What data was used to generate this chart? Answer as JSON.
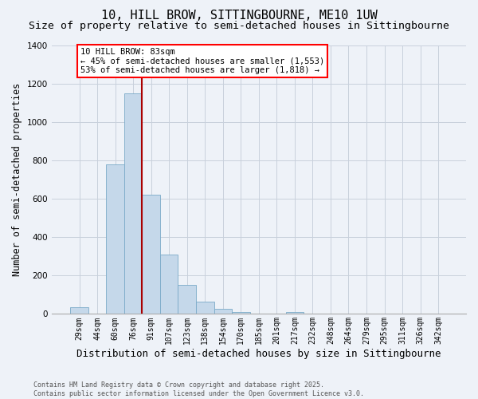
{
  "title": "10, HILL BROW, SITTINGBOURNE, ME10 1UW",
  "subtitle": "Size of property relative to semi-detached houses in Sittingbourne",
  "xlabel": "Distribution of semi-detached houses by size in Sittingbourne",
  "ylabel": "Number of semi-detached properties",
  "footnote": "Contains HM Land Registry data © Crown copyright and database right 2025.\nContains public sector information licensed under the Open Government Licence v3.0.",
  "annotation_title": "10 HILL BROW: 83sqm",
  "annotation_line1": "← 45% of semi-detached houses are smaller (1,553)",
  "annotation_line2": "53% of semi-detached houses are larger (1,818) →",
  "categories": [
    "29sqm",
    "44sqm",
    "60sqm",
    "76sqm",
    "91sqm",
    "107sqm",
    "123sqm",
    "138sqm",
    "154sqm",
    "170sqm",
    "185sqm",
    "201sqm",
    "217sqm",
    "232sqm",
    "248sqm",
    "264sqm",
    "279sqm",
    "295sqm",
    "311sqm",
    "326sqm",
    "342sqm"
  ],
  "values": [
    35,
    0,
    780,
    1150,
    620,
    310,
    150,
    65,
    25,
    10,
    0,
    0,
    10,
    0,
    0,
    0,
    0,
    0,
    0,
    0,
    0
  ],
  "bar_color": "#c5d8ea",
  "bar_edge_color": "#7aaac8",
  "red_line_x": 3.5,
  "ylim": [
    0,
    1400
  ],
  "yticks": [
    0,
    200,
    400,
    600,
    800,
    1000,
    1200,
    1400
  ],
  "grid_color": "#c8d0dc",
  "background_color": "#eef2f8",
  "title_fontsize": 11,
  "subtitle_fontsize": 9.5,
  "axis_label_fontsize": 8.5,
  "tick_fontsize": 7,
  "annot_fontsize": 7.5
}
